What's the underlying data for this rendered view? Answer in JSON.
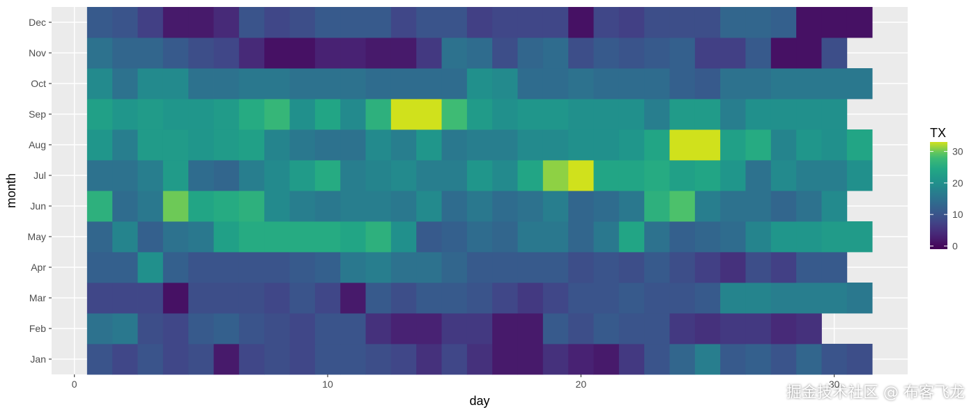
{
  "chart_data": {
    "type": "heatmap",
    "xlabel": "day",
    "ylabel": "month",
    "x_ticks": [
      0,
      10,
      20,
      30
    ],
    "xlim": [
      -0.9,
      32.9
    ],
    "y_categories": [
      "Jan",
      "Feb",
      "Mar",
      "Apr",
      "May",
      "Jun",
      "Jul",
      "Aug",
      "Sep",
      "Oct",
      "Nov",
      "Dec"
    ],
    "legend": {
      "title": "TX",
      "ticks": [
        0,
        10,
        20,
        30
      ],
      "min": -1,
      "max": 33,
      "position": "right"
    },
    "color_scale": "viridis",
    "grid": true,
    "days": [
      1,
      2,
      3,
      4,
      5,
      6,
      7,
      8,
      9,
      10,
      11,
      12,
      13,
      14,
      15,
      16,
      17,
      18,
      19,
      20,
      21,
      22,
      23,
      24,
      25,
      26,
      27,
      28,
      29,
      30,
      31
    ],
    "values": {
      "Jan": [
        10,
        8,
        10,
        8,
        9,
        2,
        8,
        9,
        8,
        10,
        10,
        9,
        8,
        5,
        8,
        5,
        2,
        2,
        5,
        3,
        2,
        6,
        10,
        13,
        17,
        11,
        12,
        10,
        13,
        10,
        9
      ],
      "Feb": [
        15,
        16,
        9,
        8,
        11,
        12,
        10,
        9,
        8,
        10,
        10,
        5,
        3,
        3,
        6,
        6,
        2,
        2,
        11,
        9,
        11,
        10,
        10,
        6,
        5,
        6,
        6,
        4,
        5,
        null,
        null
      ],
      "Mar": [
        8,
        8,
        8,
        1,
        9,
        9,
        9,
        8,
        10,
        8,
        2,
        11,
        9,
        11,
        11,
        10,
        8,
        6,
        8,
        10,
        10,
        11,
        10,
        10,
        11,
        18,
        18,
        17,
        17,
        17,
        16
      ],
      "Apr": [
        12,
        12,
        20,
        12,
        10,
        10,
        10,
        10,
        11,
        12,
        16,
        17,
        15,
        15,
        13,
        11,
        11,
        11,
        11,
        9,
        10,
        9,
        11,
        9,
        7,
        5,
        9,
        7,
        11,
        11,
        null
      ],
      "May": [
        13,
        18,
        12,
        15,
        16,
        23,
        25,
        25,
        25,
        25,
        24,
        26,
        20,
        11,
        12,
        14,
        13,
        16,
        16,
        13,
        16,
        24,
        15,
        12,
        13,
        14,
        18,
        21,
        21,
        22,
        22
      ],
      "Jun": [
        26,
        14,
        16,
        30,
        24,
        25,
        26,
        19,
        17,
        16,
        17,
        17,
        16,
        19,
        14,
        16,
        14,
        15,
        17,
        13,
        14,
        16,
        26,
        29,
        17,
        15,
        15,
        13,
        15,
        19,
        null
      ],
      "Jul": [
        15,
        15,
        17,
        22,
        14,
        13,
        17,
        19,
        22,
        25,
        17,
        18,
        19,
        17,
        17,
        21,
        19,
        24,
        31,
        33,
        24,
        24,
        25,
        23,
        24,
        21,
        15,
        19,
        17,
        17,
        20
      ],
      "Aug": [
        21,
        17,
        22,
        22,
        21,
        22,
        23,
        18,
        16,
        15,
        15,
        19,
        17,
        21,
        16,
        17,
        17,
        19,
        19,
        20,
        20,
        21,
        24,
        33,
        33,
        23,
        25,
        18,
        21,
        20,
        24
      ],
      "Sep": [
        23,
        21,
        22,
        21,
        21,
        22,
        25,
        27,
        20,
        24,
        19,
        26,
        33,
        33,
        28,
        22,
        20,
        21,
        21,
        20,
        20,
        20,
        17,
        22,
        22,
        17,
        20,
        20,
        20,
        20,
        null
      ],
      "Oct": [
        19,
        15,
        19,
        19,
        15,
        15,
        16,
        16,
        15,
        15,
        15,
        14,
        14,
        14,
        14,
        20,
        19,
        14,
        14,
        15,
        14,
        14,
        14,
        12,
        11,
        15,
        15,
        16,
        16,
        16,
        16
      ],
      "Nov": [
        15,
        13,
        13,
        11,
        9,
        8,
        4,
        1,
        1,
        3,
        3,
        2,
        2,
        6,
        15,
        14,
        9,
        13,
        14,
        9,
        11,
        10,
        11,
        12,
        7,
        7,
        11,
        1,
        1,
        9,
        null
      ],
      "Dec": [
        11,
        10,
        7,
        2,
        2,
        4,
        10,
        8,
        9,
        11,
        11,
        11,
        8,
        10,
        10,
        7,
        8,
        8,
        8,
        1,
        8,
        7,
        9,
        9,
        9,
        13,
        13,
        12,
        1,
        1,
        1
      ]
    }
  },
  "watermark": "掘金技术社区 @ 布客飞龙"
}
